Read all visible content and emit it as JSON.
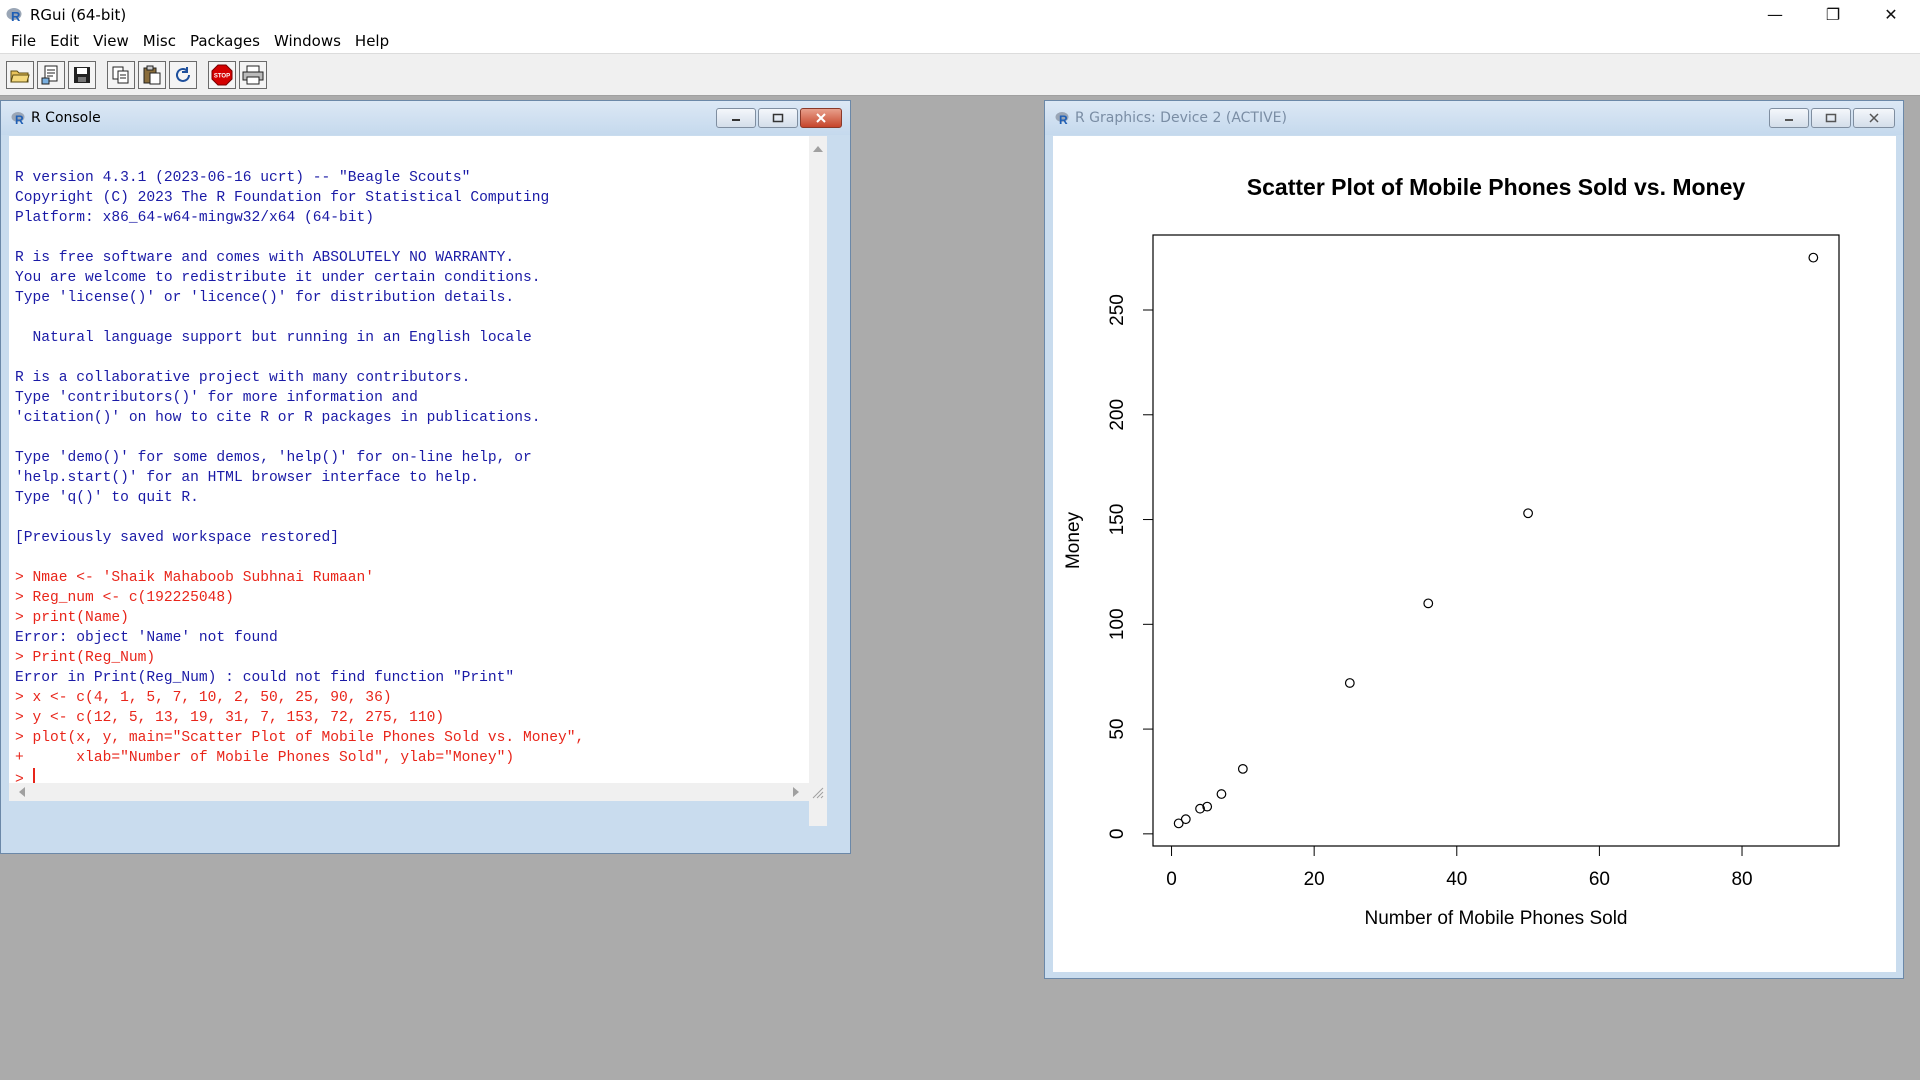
{
  "app": {
    "title": "RGui (64-bit)",
    "controls": {
      "minimize": "—",
      "restore": "❐",
      "close": "✕"
    }
  },
  "menu": [
    "File",
    "Edit",
    "View",
    "Misc",
    "Packages",
    "Windows",
    "Help"
  ],
  "toolbar": {
    "buttons": [
      "open-script-icon",
      "load-workspace-icon",
      "save-icon",
      "copy-icon",
      "paste-icon",
      "refresh-icon",
      "stop-icon",
      "print-icon"
    ],
    "stop_label": "STOP"
  },
  "console": {
    "title": "R Console",
    "lines": [
      {
        "t": "out",
        "s": "R version 4.3.1 (2023-06-16 ucrt) -- \"Beagle Scouts\""
      },
      {
        "t": "out",
        "s": "Copyright (C) 2023 The R Foundation for Statistical Computing"
      },
      {
        "t": "out",
        "s": "Platform: x86_64-w64-mingw32/x64 (64-bit)"
      },
      {
        "t": "out",
        "s": ""
      },
      {
        "t": "out",
        "s": "R is free software and comes with ABSOLUTELY NO WARRANTY."
      },
      {
        "t": "out",
        "s": "You are welcome to redistribute it under certain conditions."
      },
      {
        "t": "out",
        "s": "Type 'license()' or 'licence()' for distribution details."
      },
      {
        "t": "out",
        "s": ""
      },
      {
        "t": "out",
        "s": "  Natural language support but running in an English locale"
      },
      {
        "t": "out",
        "s": ""
      },
      {
        "t": "out",
        "s": "R is a collaborative project with many contributors."
      },
      {
        "t": "out",
        "s": "Type 'contributors()' for more information and"
      },
      {
        "t": "out",
        "s": "'citation()' on how to cite R or R packages in publications."
      },
      {
        "t": "out",
        "s": ""
      },
      {
        "t": "out",
        "s": "Type 'demo()' for some demos, 'help()' for on-line help, or"
      },
      {
        "t": "out",
        "s": "'help.start()' for an HTML browser interface to help."
      },
      {
        "t": "out",
        "s": "Type 'q()' to quit R."
      },
      {
        "t": "out",
        "s": ""
      },
      {
        "t": "out",
        "s": "[Previously saved workspace restored]"
      },
      {
        "t": "out",
        "s": ""
      },
      {
        "t": "in",
        "s": "> Nmae <- 'Shaik Mahaboob Subhnai Rumaan'"
      },
      {
        "t": "in",
        "s": "> Reg_num <- c(192225048)"
      },
      {
        "t": "in",
        "s": "> print(Name)"
      },
      {
        "t": "out",
        "s": "Error: object 'Name' not found"
      },
      {
        "t": "in",
        "s": "> Print(Reg_Num)"
      },
      {
        "t": "out",
        "s": "Error in Print(Reg_Num) : could not find function \"Print\""
      },
      {
        "t": "in",
        "s": "> x <- c(4, 1, 5, 7, 10, 2, 50, 25, 90, 36)"
      },
      {
        "t": "in",
        "s": "> y <- c(12, 5, 13, 19, 31, 7, 153, 72, 275, 110)"
      },
      {
        "t": "in",
        "s": "> plot(x, y, main=\"Scatter Plot of Mobile Phones Sold vs. Money\","
      },
      {
        "t": "in",
        "s": "+      xlab=\"Number of Mobile Phones Sold\", ylab=\"Money\")"
      }
    ],
    "prompt": "> "
  },
  "graphics": {
    "title": "R Graphics: Device 2 (ACTIVE)"
  },
  "chart_data": {
    "type": "scatter",
    "title": "Scatter Plot of Mobile Phones Sold vs. Money",
    "xlabel": "Number of Mobile Phones Sold",
    "ylabel": "Money",
    "x": [
      4,
      1,
      5,
      7,
      10,
      2,
      50,
      25,
      90,
      36
    ],
    "y": [
      12,
      5,
      13,
      19,
      31,
      7,
      153,
      72,
      275,
      110
    ],
    "xlim": [
      -2.6,
      93.6
    ],
    "ylim": [
      -5.8,
      285.8
    ],
    "xticks": [
      0,
      20,
      40,
      60,
      80
    ],
    "yticks": [
      0,
      50,
      100,
      150,
      200,
      250
    ],
    "grid": false,
    "legend": "none"
  }
}
